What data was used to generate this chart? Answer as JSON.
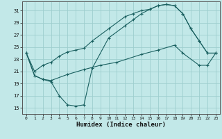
{
  "xlabel": "Humidex (Indice chaleur)",
  "bg_color": "#c2e8e8",
  "grid_color": "#9ecece",
  "line_color": "#1a6060",
  "xlim": [
    -0.5,
    23.5
  ],
  "ylim": [
    14.0,
    32.5
  ],
  "xticks": [
    0,
    1,
    2,
    3,
    4,
    5,
    6,
    7,
    8,
    9,
    10,
    11,
    12,
    13,
    14,
    15,
    16,
    17,
    18,
    19,
    20,
    21,
    22,
    23
  ],
  "yticks": [
    15,
    17,
    19,
    21,
    23,
    25,
    27,
    29,
    31
  ],
  "curve1_x": [
    0,
    1,
    2,
    3,
    4,
    5,
    6,
    7,
    8,
    10,
    12,
    13,
    14,
    15,
    16,
    17,
    18,
    19,
    20,
    21,
    22,
    23
  ],
  "curve1_y": [
    24,
    20.3,
    19.7,
    19.3,
    17.0,
    15.5,
    15.3,
    15.5,
    21.5,
    26.5,
    28.5,
    29.5,
    30.5,
    31.2,
    31.8,
    32.0,
    31.8,
    30.5,
    28.0,
    26.0,
    24.0,
    24.0
  ],
  "curve2_x": [
    0,
    1,
    2,
    3,
    4,
    5,
    6,
    7,
    8,
    10,
    12,
    13,
    14,
    15,
    16,
    17,
    18,
    19,
    20,
    21,
    22,
    23
  ],
  "curve2_y": [
    24,
    21,
    22,
    22.5,
    23.5,
    24.2,
    24.5,
    24.8,
    26.0,
    28.0,
    30.0,
    30.5,
    31.0,
    31.2,
    31.8,
    32.0,
    31.8,
    30.5,
    28.0,
    26.0,
    24.0,
    24.0
  ],
  "curve3_x": [
    0,
    1,
    2,
    3,
    5,
    7,
    9,
    11,
    14,
    16,
    18,
    19,
    21,
    22,
    23
  ],
  "curve3_y": [
    24,
    20.3,
    19.7,
    19.5,
    20.5,
    21.3,
    22.0,
    22.5,
    23.8,
    24.5,
    25.3,
    24.0,
    22.0,
    22.0,
    24.0
  ]
}
